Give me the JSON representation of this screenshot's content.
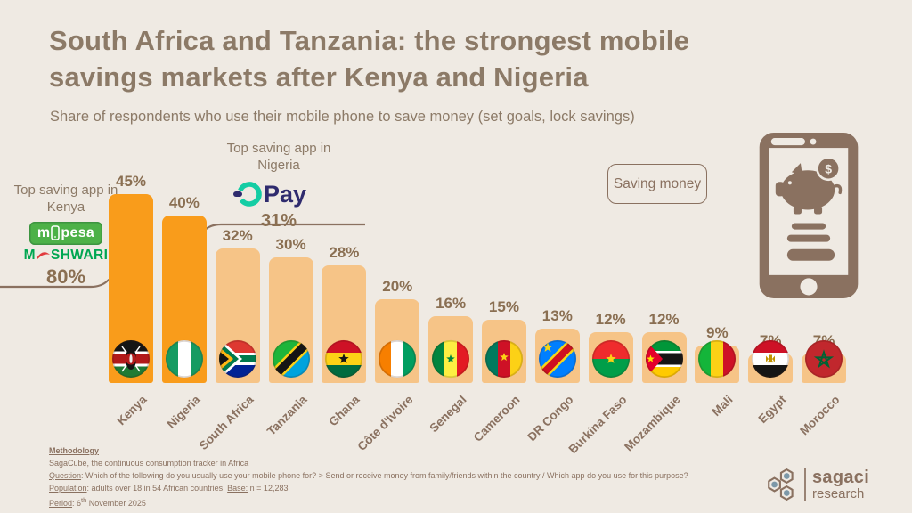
{
  "header": {
    "title_line1": "South Africa and Tanzania: the strongest mobile",
    "title_line2": "savings markets after Kenya and Nigeria",
    "subtitle": "Share of respondents who use their mobile phone to save money (set goals, lock savings)"
  },
  "chart_data": {
    "type": "bar",
    "title": "South Africa and Tanzania: the strongest mobile savings markets after Kenya and Nigeria",
    "subtitle": "Share of respondents who use their mobile phone to save money (set goals, lock savings)",
    "categories": [
      "Kenya",
      "Nigeria",
      "South Africa",
      "Tanzania",
      "Ghana",
      "Côte d'Ivoire",
      "Senegal",
      "Cameroon",
      "DR Congo",
      "Burkina Faso",
      "Mozambique",
      "Mali",
      "Egypt",
      "Morocco"
    ],
    "values": [
      45,
      40,
      32,
      30,
      28,
      20,
      16,
      15,
      13,
      12,
      12,
      9,
      7,
      7
    ],
    "unit": "%",
    "ylim": [
      0,
      50
    ],
    "gridlines": false,
    "legend": "none",
    "value_labels": true,
    "highlighted_categories": [
      "Kenya",
      "Nigeria"
    ],
    "bar_colors": {
      "highlight": "#F99C1B",
      "default": "#F6C487"
    },
    "callouts": [
      {
        "target": "Kenya",
        "label": "Top saving app in Kenya",
        "apps": [
          "M-PESA",
          "M-SHWARI"
        ],
        "value": "80%"
      },
      {
        "target": "Nigeria",
        "label": "Top saving app in Nigeria",
        "apps": [
          "OPay"
        ],
        "value": "31%"
      }
    ]
  },
  "annotations": {
    "kenya": {
      "title": "Top saving app in Kenya",
      "mpesa_left": "m",
      "mpesa_right": "pesa",
      "mshwari_left": "M",
      "mshwari_right": "SHWARI",
      "value": "80%"
    },
    "nigeria": {
      "title": "Top saving app in Nigeria",
      "opay_text": "Pay",
      "value": "31%"
    }
  },
  "badge": {
    "label": "Saving money"
  },
  "footer": {
    "methodology_title": "Methodology",
    "line1": "SagaCube, the continuous consumption tracker in Africa",
    "question_label": "Question",
    "question_text": ": Which of the following do you usually use your mobile phone for?  > Send or receive money from family/friends within the country / Which app do you use for this purpose?",
    "population_label": "Population",
    "population_text": ": adults over 18 in 54 African countries",
    "base_label": "Base:",
    "base_text": " n = 12,283",
    "period_label": "Period",
    "period_text1": ":  6",
    "period_sup": "th",
    "period_text2": " November 2025"
  },
  "logo": {
    "line1": "sagaci",
    "line2": "research"
  },
  "colors": {
    "background": "#EFEAE3",
    "brown": "#8A7160",
    "bar_highlight": "#F99C1B",
    "bar_default": "#F6C487",
    "mpesa_green": "#4DB148",
    "mshwari_green": "#00A651",
    "swoosh_red": "#E23B3E",
    "opay_teal": "#14CDA4",
    "opay_navy": "#2F2B6E"
  }
}
